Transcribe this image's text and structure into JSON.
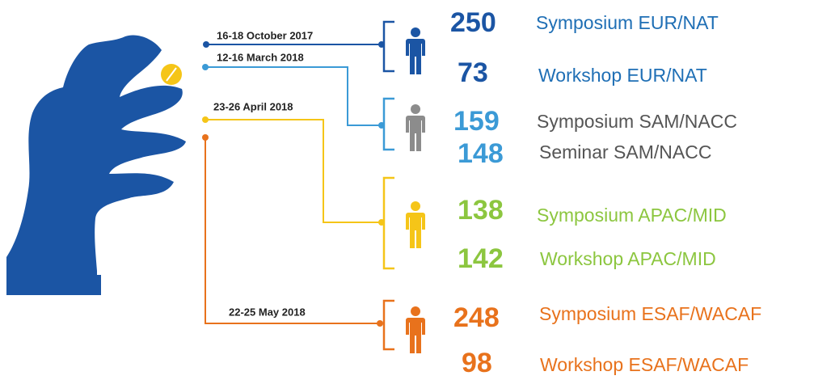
{
  "groups": [
    {
      "date": "16-18 October 2017",
      "events": [
        {
          "count": "250",
          "label": "Symposium EUR/NAT"
        },
        {
          "count": "73",
          "label": "Workshop EUR/NAT"
        }
      ]
    },
    {
      "date": "12-16 March 2018",
      "events": [
        {
          "count": "159",
          "label": "Symposium SAM/NACC"
        },
        {
          "count": "148",
          "label": "Seminar SAM/NACC"
        }
      ]
    },
    {
      "date": "23-26 April 2018",
      "events": [
        {
          "count": "138",
          "label": "Symposium APAC/MID"
        },
        {
          "count": "142",
          "label": "Workshop APAC/MID"
        }
      ]
    },
    {
      "date": "22-25 May 2018",
      "events": [
        {
          "count": "248",
          "label": "Symposium ESAF/WACAF"
        },
        {
          "count": "98",
          "label": "Workshop ESAF/WACAF"
        }
      ]
    }
  ]
}
